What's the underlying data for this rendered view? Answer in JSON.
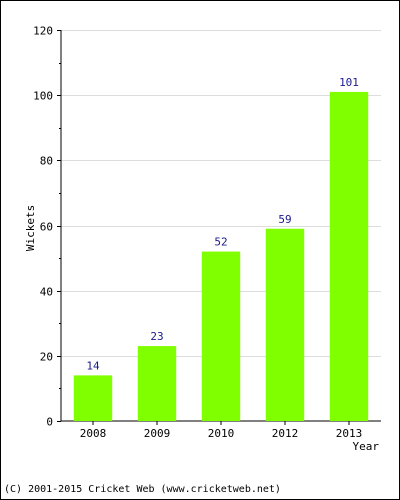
{
  "chart_data": {
    "type": "bar",
    "categories": [
      "2008",
      "2009",
      "2010",
      "2012",
      "2013"
    ],
    "values": [
      14,
      23,
      52,
      59,
      101
    ],
    "data_labels": [
      "14",
      "23",
      "52",
      "59",
      "101"
    ],
    "title": "",
    "xlabel": "Year",
    "ylabel": "Wickets",
    "ylim": [
      0,
      120
    ],
    "yticks": [
      0,
      20,
      40,
      60,
      80,
      100,
      120
    ],
    "grid": true,
    "bar_color": "#80ff00",
    "label_color": "#1a1a8c"
  },
  "footer": {
    "copyright": "(C) 2001-2015 Cricket Web (www.cricketweb.net)"
  }
}
